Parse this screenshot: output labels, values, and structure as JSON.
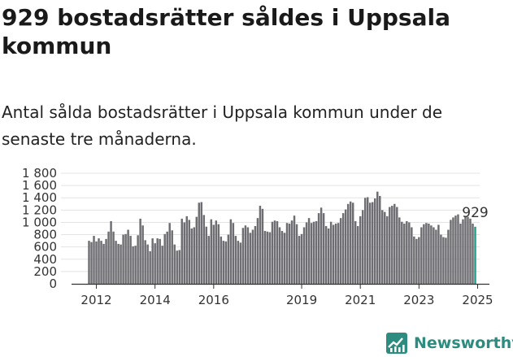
{
  "title": "929 bostadsrätter såldes i Uppsala kommun",
  "subtitle": "Antal sålda bostadsrätter i Uppsala kommun under de senaste tre månaderna.",
  "brand": "Newsworthy",
  "colors": {
    "bar": "#6e6e72",
    "highlight": "#1f9e8a",
    "brand": "#2b8c7f",
    "axis": "#333333"
  },
  "chart_data": {
    "type": "bar",
    "ylim": [
      0,
      1800
    ],
    "y_ticks": [
      "0",
      "200",
      "400",
      "600",
      "800",
      "1 000",
      "1 200",
      "1 400",
      "1 600",
      "1 800"
    ],
    "x_ticks": [
      "2012",
      "2014",
      "2016",
      "2019",
      "2021",
      "2023",
      "2025"
    ],
    "grid": true,
    "highlight_label": "929",
    "values": [
      700,
      680,
      780,
      690,
      740,
      700,
      650,
      730,
      850,
      1020,
      850,
      700,
      650,
      640,
      800,
      810,
      880,
      780,
      610,
      620,
      790,
      1060,
      950,
      710,
      640,
      530,
      740,
      660,
      740,
      730,
      620,
      810,
      850,
      990,
      870,
      640,
      540,
      550,
      1060,
      1000,
      1100,
      1040,
      900,
      920,
      1090,
      1320,
      1330,
      1120,
      930,
      780,
      1050,
      960,
      1030,
      970,
      770,
      700,
      690,
      800,
      1050,
      990,
      780,
      700,
      670,
      910,
      950,
      920,
      830,
      880,
      940,
      1070,
      1270,
      1220,
      860,
      850,
      840,
      1010,
      1030,
      1020,
      920,
      860,
      830,
      990,
      980,
      1030,
      1110,
      970,
      780,
      810,
      920,
      1000,
      1070,
      990,
      1010,
      1020,
      1150,
      1240,
      1150,
      940,
      900,
      1010,
      960,
      980,
      990,
      1070,
      1150,
      1210,
      1300,
      1340,
      1320,
      1020,
      940,
      1100,
      1200,
      1400,
      1410,
      1320,
      1330,
      1390,
      1500,
      1430,
      1200,
      1170,
      1100,
      1250,
      1270,
      1300,
      1250,
      1080,
      1010,
      980,
      1020,
      1000,
      920,
      770,
      730,
      760,
      920,
      970,
      990,
      980,
      950,
      920,
      880,
      960,
      800,
      760,
      750,
      880,
      1040,
      1080,
      1110,
      1130,
      980,
      1050,
      1100,
      1090,
      1060,
      980,
      929
    ]
  }
}
